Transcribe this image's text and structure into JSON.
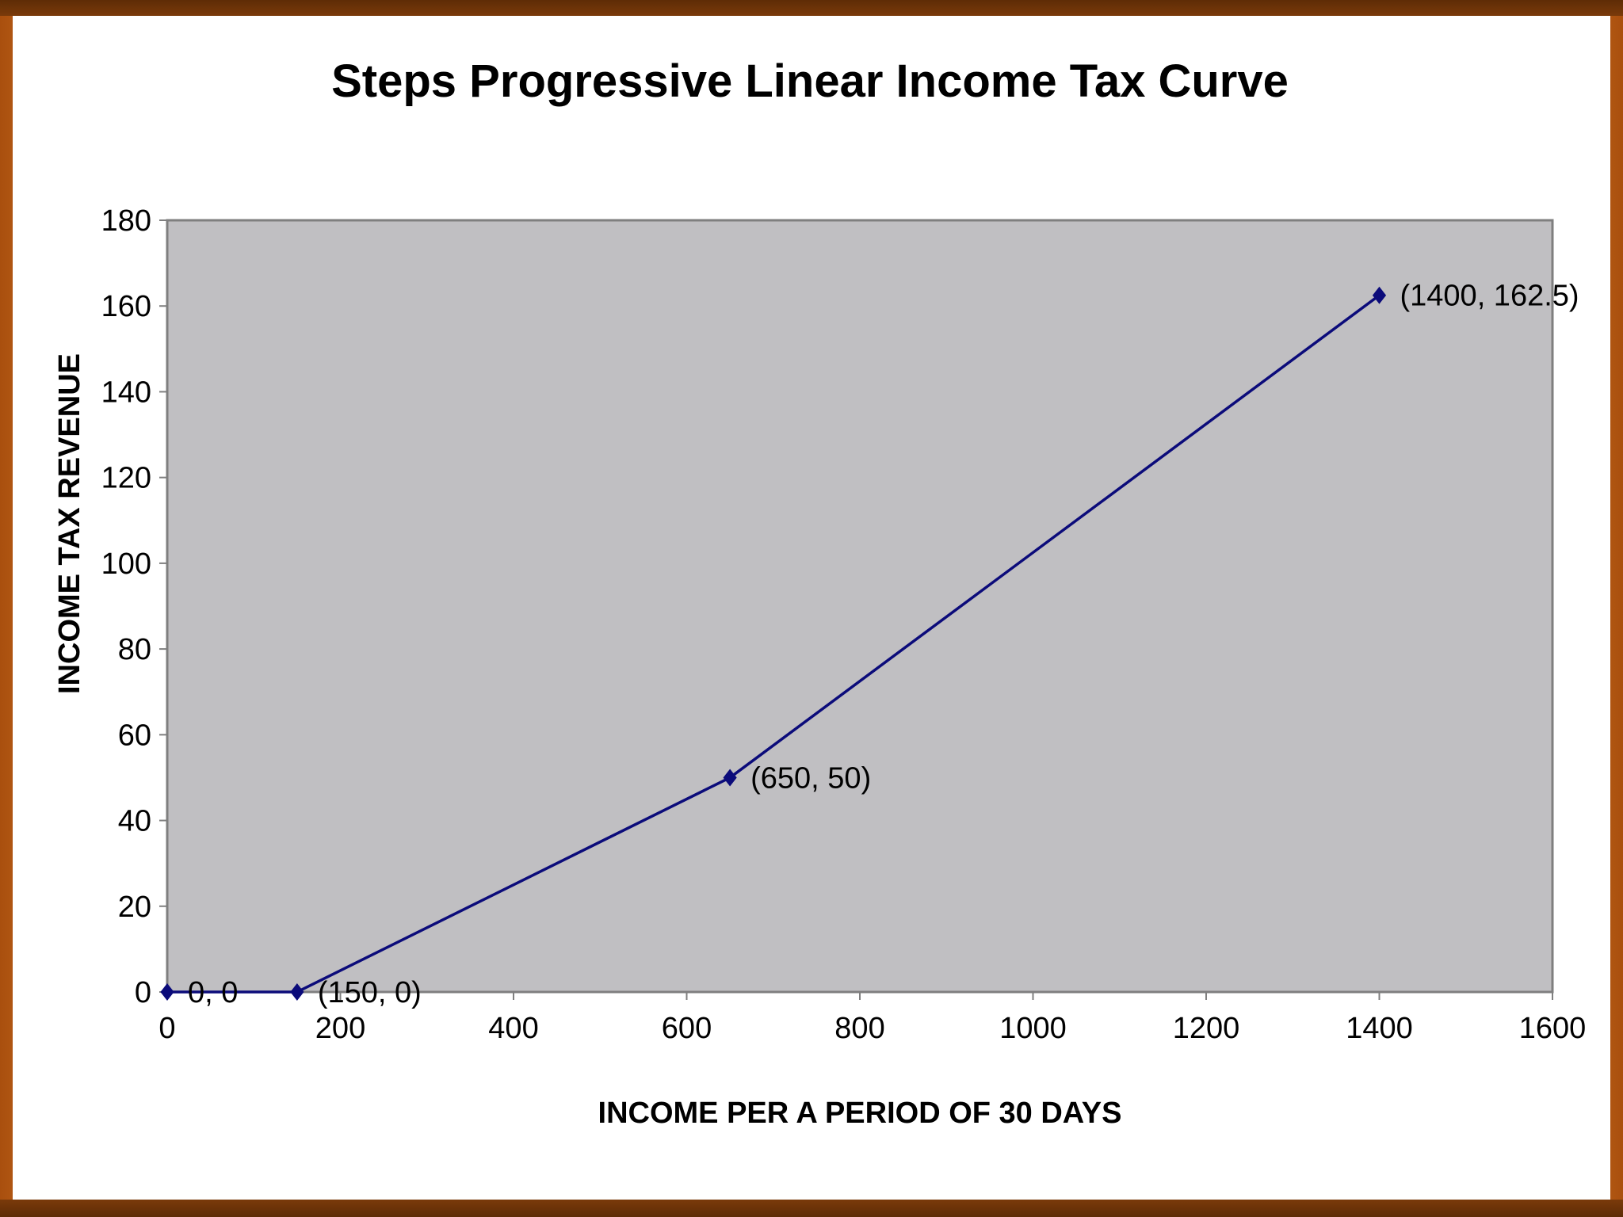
{
  "chart_data": {
    "type": "line",
    "title": "Steps Progressive Linear Income Tax Curve",
    "xlabel": "INCOME  PER A PERIOD OF 30 DAYS",
    "ylabel": "INCOME TAX REVENUE",
    "xlim": [
      0,
      1600
    ],
    "ylim": [
      0,
      180
    ],
    "x_ticks": [
      0,
      200,
      400,
      600,
      800,
      1000,
      1200,
      1400,
      1600
    ],
    "y_ticks": [
      0,
      20,
      40,
      60,
      80,
      100,
      120,
      140,
      160,
      180
    ],
    "grid": false,
    "plot_background": "#c0bfc2",
    "series": [
      {
        "color": "#0b0b7a",
        "marker": "diamond",
        "points": [
          {
            "x": 0,
            "y": 0,
            "label": "0, 0"
          },
          {
            "x": 150,
            "y": 0,
            "label": "(150, 0)"
          },
          {
            "x": 650,
            "y": 50,
            "label": "(650, 50)"
          },
          {
            "x": 1400,
            "y": 162.5,
            "label": "(1400, 162.5)"
          }
        ]
      }
    ]
  }
}
